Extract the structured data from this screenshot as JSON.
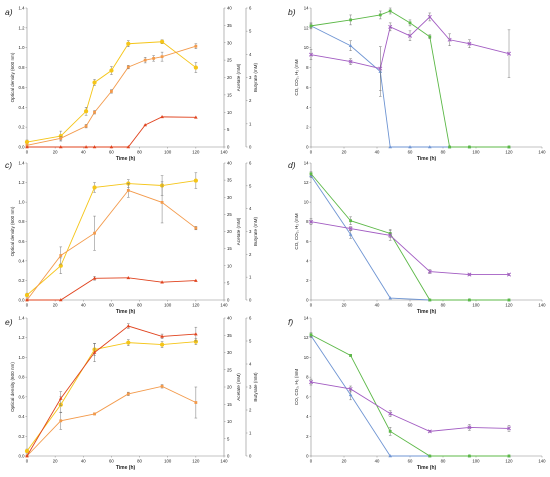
{
  "figure": {
    "panels": [
      "a)",
      "b)",
      "c)",
      "d)",
      "e)",
      "f)"
    ]
  },
  "colors": {
    "yellow": "#f5c518",
    "orange": "#f39a4b",
    "red": "#e0431e",
    "blue": "#6f95d3",
    "green": "#5cb847",
    "purple": "#a25cc2",
    "axis": "#888888",
    "text": "#222222"
  },
  "chart_data": [
    {
      "panel": "a)",
      "type": "line",
      "xlabel": "Time (h)",
      "ylabel": "Optical density (600 nm)",
      "y2label": "Acetate (mM)",
      "y3label": "Butyrate (mM)",
      "xlim": [
        0,
        140
      ],
      "ylim": [
        0,
        1.4
      ],
      "y2lim": [
        0,
        40
      ],
      "y3lim": [
        0,
        6
      ],
      "xticks": [
        0,
        20,
        40,
        60,
        80,
        100,
        120,
        140
      ],
      "yticks": [
        0,
        0.2,
        0.4,
        0.6,
        0.8,
        1.0,
        1.2,
        1.4
      ],
      "y2ticks": [
        0,
        5,
        10,
        15,
        20,
        25,
        30,
        35,
        40
      ],
      "y3ticks": [
        0,
        1,
        2,
        3,
        4,
        5,
        6
      ],
      "series": [
        {
          "axis": "y",
          "color": "yellow",
          "marker": "circle",
          "x": [
            0,
            24,
            42,
            48,
            60,
            72,
            96,
            120
          ],
          "y": [
            0.05,
            0.11,
            0.36,
            0.65,
            0.77,
            1.04,
            1.06,
            0.8
          ],
          "err": [
            0.02,
            0.05,
            0.04,
            0.03,
            0.04,
            0.03,
            0.02,
            0.05
          ]
        },
        {
          "axis": "y2",
          "color": "orange",
          "marker": "square",
          "x": [
            0,
            24,
            42,
            48,
            60,
            72,
            84,
            90,
            96,
            120
          ],
          "y": [
            0.5,
            2.5,
            6,
            10,
            16,
            23,
            25,
            25.5,
            26,
            29
          ],
          "err": [
            0.3,
            0.5,
            0.5,
            0.5,
            0.5,
            0.5,
            0.8,
            0.8,
            1.3,
            0.7
          ]
        },
        {
          "axis": "y3",
          "color": "red",
          "marker": "triangle",
          "x": [
            0,
            24,
            42,
            48,
            60,
            72,
            84,
            96,
            120
          ],
          "y": [
            0,
            0,
            0,
            0,
            0,
            0,
            0.95,
            1.3,
            1.28
          ]
        }
      ]
    },
    {
      "panel": "b)",
      "type": "line",
      "xlabel": "Time (h)",
      "ylabel": "CO, CO₂, H₂ (mM",
      "xlim": [
        0,
        140
      ],
      "ylim": [
        0,
        14
      ],
      "xticks": [
        0,
        20,
        40,
        60,
        80,
        100,
        120,
        140
      ],
      "yticks": [
        0,
        2,
        4,
        6,
        8,
        10,
        12,
        14
      ],
      "series": [
        {
          "color": "blue",
          "marker": "triangle",
          "x": [
            0,
            24,
            42,
            48,
            60,
            72,
            84,
            96,
            120
          ],
          "y": [
            12.2,
            10.2,
            7.6,
            0,
            0,
            0,
            0,
            0,
            0
          ],
          "err": [
            0.2,
            0.5,
            2.5,
            0,
            0,
            0,
            0,
            0,
            0
          ]
        },
        {
          "color": "green",
          "marker": "square",
          "x": [
            0,
            24,
            42,
            48,
            60,
            72,
            84,
            96,
            120
          ],
          "y": [
            12.2,
            12.8,
            13.3,
            13.7,
            12.5,
            11.1,
            0,
            0,
            0
          ],
          "err": [
            0.3,
            0.5,
            0.4,
            0.3,
            0.3,
            0.2,
            0,
            0,
            0
          ]
        },
        {
          "color": "purple",
          "marker": "cross",
          "x": [
            0,
            24,
            42,
            48,
            60,
            72,
            84,
            96,
            120
          ],
          "y": [
            9.3,
            8.6,
            7.9,
            12.1,
            11.2,
            13.1,
            10.8,
            10.4,
            9.4
          ],
          "err": [
            0.5,
            0.3,
            2.2,
            0.4,
            0.5,
            0.4,
            0.6,
            0.4,
            2.4
          ]
        }
      ]
    },
    {
      "panel": "c)",
      "type": "line",
      "xlabel": "Time (h)",
      "ylabel": "Optical density (600 nm)",
      "y2label": "Acetate (mM)",
      "y3label": "Butyrate (mM)",
      "xlim": [
        0,
        140
      ],
      "ylim": [
        0,
        1.4
      ],
      "y2lim": [
        0,
        40
      ],
      "y3lim": [
        0,
        6
      ],
      "xticks": [
        0,
        20,
        40,
        60,
        80,
        100,
        120,
        140
      ],
      "yticks": [
        0,
        0.2,
        0.4,
        0.6,
        0.8,
        1.0,
        1.2,
        1.4
      ],
      "y2ticks": [
        0,
        5,
        10,
        15,
        20,
        25,
        30,
        35,
        40
      ],
      "y3ticks": [
        0,
        1,
        2,
        3,
        4,
        5,
        6
      ],
      "series": [
        {
          "axis": "y",
          "color": "yellow",
          "marker": "circle",
          "x": [
            0,
            24,
            48,
            72,
            96,
            120
          ],
          "y": [
            0.05,
            0.35,
            1.15,
            1.19,
            1.17,
            1.22
          ],
          "err": [
            0.02,
            0.08,
            0.05,
            0.04,
            0.1,
            0.08
          ]
        },
        {
          "axis": "y2",
          "color": "orange",
          "marker": "square",
          "x": [
            0,
            24,
            48,
            72,
            96,
            120
          ],
          "y": [
            0,
            13,
            19.5,
            32,
            28.5,
            21
          ],
          "err": [
            0,
            2.5,
            5,
            2,
            6,
            0.5
          ]
        },
        {
          "axis": "y3",
          "color": "red",
          "marker": "triangle",
          "x": [
            0,
            24,
            48,
            72,
            96,
            120
          ],
          "y": [
            0,
            0,
            0.95,
            0.97,
            0.78,
            0.85
          ],
          "err": [
            0,
            0,
            0.08,
            0,
            0,
            0
          ]
        }
      ]
    },
    {
      "panel": "d)",
      "type": "line",
      "xlabel": "Time (h)",
      "ylabel": "CO, CO₂, H₂ (mM",
      "xlim": [
        0,
        140
      ],
      "ylim": [
        0,
        14
      ],
      "xticks": [
        0,
        20,
        40,
        60,
        80,
        100,
        120,
        140
      ],
      "yticks": [
        0,
        2,
        4,
        6,
        8,
        10,
        12,
        14
      ],
      "series": [
        {
          "color": "blue",
          "marker": "triangle",
          "x": [
            0,
            24,
            48,
            72,
            96,
            120
          ],
          "y": [
            12.7,
            6.7,
            0.2,
            0,
            0,
            0
          ],
          "err": [
            0.2,
            0.4,
            0,
            0,
            0,
            0
          ]
        },
        {
          "color": "green",
          "marker": "square",
          "x": [
            0,
            24,
            48,
            72,
            96,
            120
          ],
          "y": [
            12.9,
            8.1,
            6.8,
            0,
            0,
            0
          ],
          "err": [
            0.2,
            0.4,
            0.4,
            0,
            0,
            0
          ]
        },
        {
          "color": "purple",
          "marker": "cross",
          "x": [
            0,
            24,
            48,
            72,
            96,
            120
          ],
          "y": [
            8.0,
            7.3,
            6.6,
            2.9,
            2.6,
            2.6
          ],
          "err": [
            0.3,
            0.2,
            0.5,
            0.2,
            0.1,
            0.1
          ]
        }
      ]
    },
    {
      "panel": "e)",
      "type": "line",
      "xlabel": "Time (h)",
      "ylabel": "Optical density (600 nm)",
      "y2label": "Acetate (mM)",
      "y3label": "Butyrate (mM)",
      "xlim": [
        0,
        140
      ],
      "ylim": [
        0,
        1.4
      ],
      "y2lim": [
        0,
        40
      ],
      "y3lim": [
        0,
        6
      ],
      "xticks": [
        0,
        20,
        40,
        60,
        80,
        100,
        120,
        140
      ],
      "yticks": [
        0,
        0.2,
        0.4,
        0.6,
        0.8,
        1.0,
        1.2,
        1.4
      ],
      "y2ticks": [
        0,
        5,
        10,
        15,
        20,
        25,
        30,
        35,
        40
      ],
      "y3ticks": [
        0,
        1,
        2,
        3,
        4,
        5,
        6
      ],
      "series": [
        {
          "axis": "y",
          "color": "yellow",
          "marker": "circle",
          "x": [
            0,
            24,
            48,
            72,
            96,
            120
          ],
          "y": [
            0.05,
            0.52,
            1.08,
            1.15,
            1.13,
            1.16
          ],
          "err": [
            0.02,
            0.08,
            0.06,
            0.03,
            0.03,
            0.03
          ]
        },
        {
          "axis": "y2",
          "color": "orange",
          "marker": "square",
          "x": [
            0,
            24,
            48,
            72,
            96,
            120
          ],
          "y": [
            0,
            10.2,
            12.2,
            18,
            20.2,
            15.5
          ],
          "err": [
            0,
            2.5,
            0.3,
            0.5,
            0.5,
            4.5
          ]
        },
        {
          "axis": "y3",
          "color": "red",
          "marker": "triangle",
          "x": [
            0,
            24,
            48,
            72,
            96,
            120
          ],
          "y": [
            0,
            2.5,
            4.5,
            5.65,
            5.2,
            5.3
          ],
          "err": [
            0,
            0.3,
            0.4,
            0.1,
            0.1,
            0.3
          ]
        }
      ]
    },
    {
      "panel": "f)",
      "type": "line",
      "xlabel": "Time (h)",
      "ylabel": "CO, CO₂, H₂ (mM",
      "xlim": [
        0,
        140
      ],
      "ylim": [
        0,
        14
      ],
      "xticks": [
        0,
        20,
        40,
        60,
        80,
        100,
        120,
        140
      ],
      "yticks": [
        0,
        2,
        4,
        6,
        8,
        10,
        12,
        14
      ],
      "series": [
        {
          "color": "blue",
          "marker": "triangle",
          "x": [
            0,
            24,
            48,
            72,
            96,
            120
          ],
          "y": [
            12.2,
            6.2,
            0,
            0,
            0,
            0
          ],
          "err": [
            0.2,
            0.5,
            0,
            0,
            0,
            0
          ]
        },
        {
          "color": "green",
          "marker": "square",
          "x": [
            0,
            24,
            48,
            72,
            96,
            120
          ],
          "y": [
            12.3,
            10.2,
            2.5,
            0,
            0,
            0
          ],
          "err": [
            0.2,
            0.1,
            0.4,
            0,
            0,
            0
          ]
        },
        {
          "color": "purple",
          "marker": "cross",
          "x": [
            0,
            24,
            48,
            72,
            96,
            120
          ],
          "y": [
            7.5,
            6.8,
            4.3,
            2.5,
            2.9,
            2.8
          ],
          "err": [
            0.3,
            0.3,
            0.3,
            0.1,
            0.3,
            0.3
          ]
        }
      ]
    }
  ]
}
